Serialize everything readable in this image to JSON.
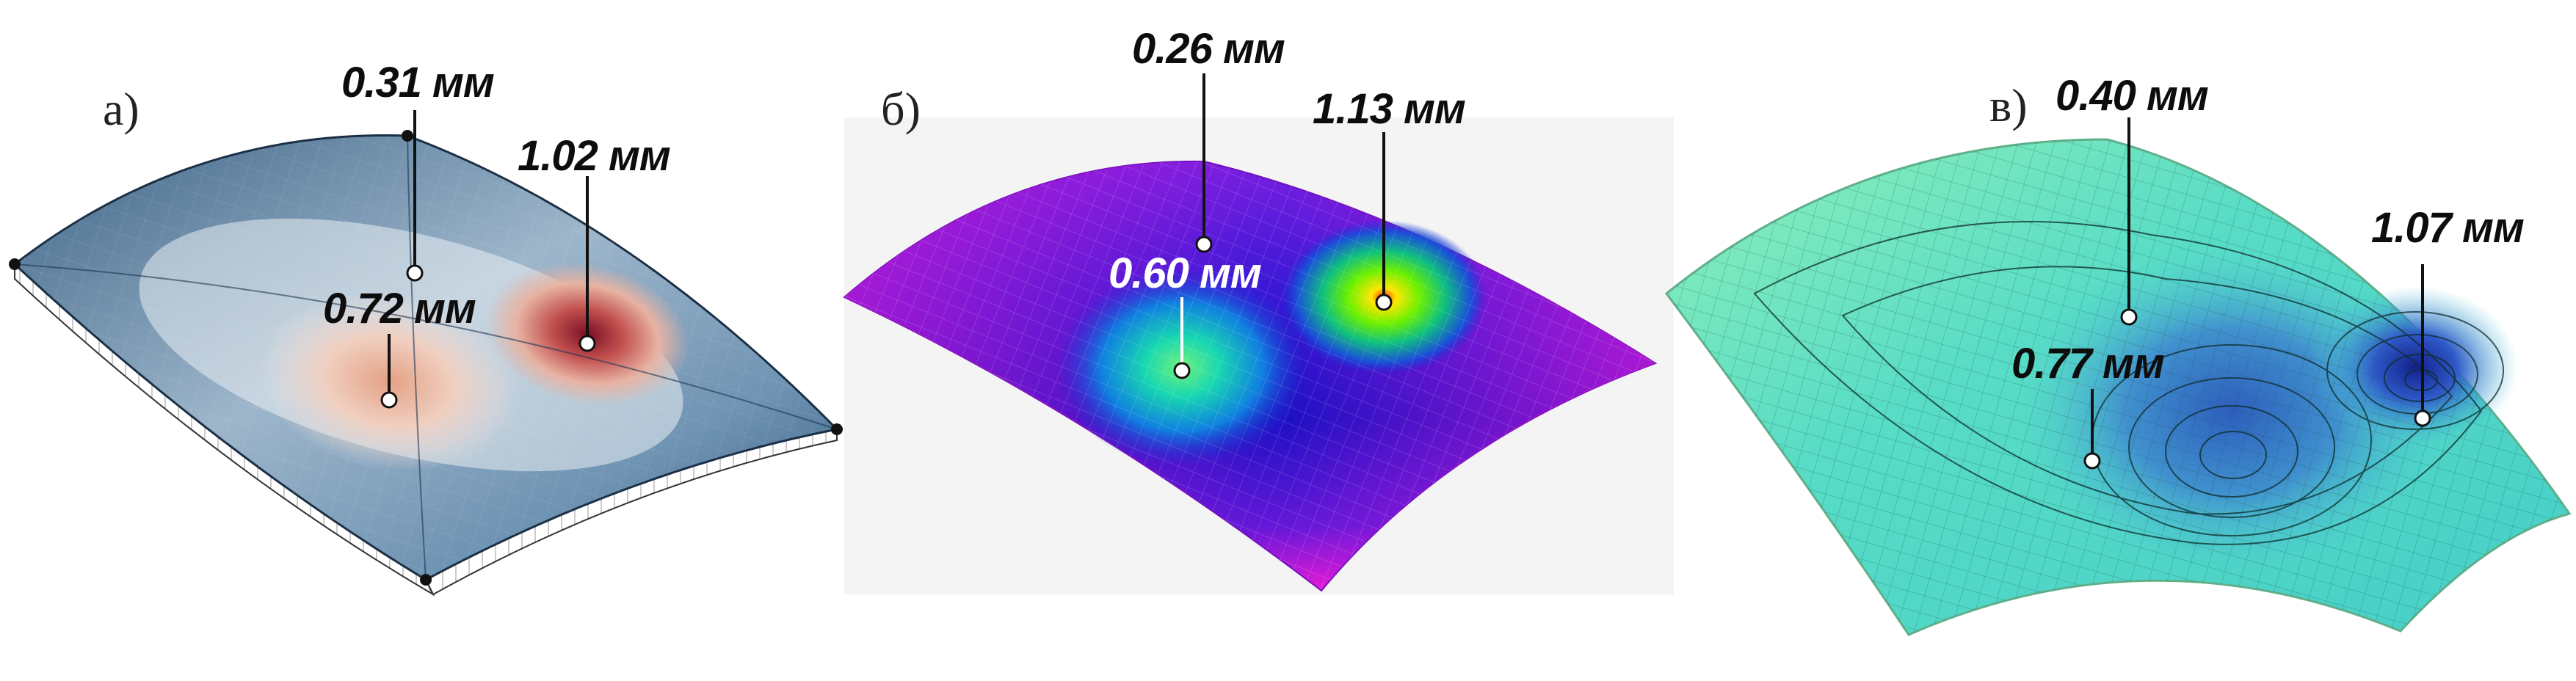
{
  "panels": [
    {
      "letter": "а)",
      "labels": {
        "top": "0.31 мм",
        "peak": "1.02 мм",
        "second": "0.72 мм"
      }
    },
    {
      "letter": "б)",
      "labels": {
        "top": "0.26 мм",
        "peak": "1.13 мм",
        "second": "0.60 мм"
      }
    },
    {
      "letter": "в)",
      "labels": {
        "top": "0.40 мм",
        "peak": "1.07 мм",
        "second": "0.77 мм"
      }
    }
  ],
  "colors": {
    "panel_a_base": "#2e5476",
    "panel_a_hot": "#8b1a2a",
    "panel_b_base": "#2a12c8",
    "panel_b_edge": "#e01ad8",
    "panel_b_hot": "#ffdf00",
    "panel_c_base": "#4fd6c2",
    "panel_c_deep": "#1f3fb8"
  }
}
